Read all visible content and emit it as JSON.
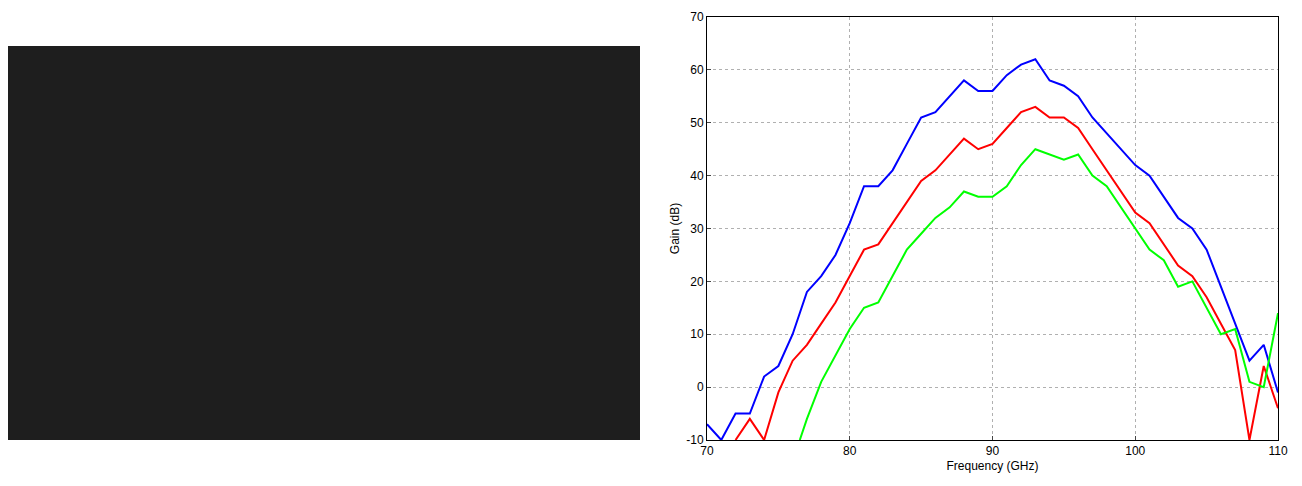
{
  "chart_data": {
    "type": "line",
    "x_label": "Frequency (GHz)",
    "y_label": "Gain (dB)",
    "xlim": [
      70,
      110
    ],
    "xticks": [
      70,
      80,
      90,
      100,
      110
    ],
    "ylim": [
      -10,
      70
    ],
    "yticks": [
      -10,
      0,
      10,
      20,
      30,
      40,
      50,
      60,
      70
    ],
    "grid": true,
    "series": [
      {
        "color": "#0000ff",
        "x": [
          70,
          71,
          72,
          73,
          74,
          75,
          76,
          77,
          78,
          79,
          80,
          81,
          82,
          83,
          84,
          85,
          86,
          87,
          88,
          89,
          90,
          91,
          92,
          93,
          94,
          95,
          96,
          97,
          98,
          99,
          100,
          101,
          102,
          103,
          104,
          105,
          106,
          107,
          108,
          109,
          110
        ],
        "values": [
          -7,
          -10,
          -5,
          -5,
          2,
          4,
          10,
          18,
          21,
          25,
          31,
          38,
          38,
          41,
          46,
          51,
          52,
          55,
          58,
          56,
          56,
          59,
          61,
          62,
          58,
          57,
          55,
          51,
          48,
          45,
          42,
          40,
          36,
          32,
          30,
          26,
          19,
          12,
          5,
          8,
          -1
        ]
      },
      {
        "color": "#ff0000",
        "x": [
          72,
          73,
          74,
          75,
          76,
          77,
          78,
          79,
          80,
          81,
          82,
          83,
          84,
          85,
          86,
          87,
          88,
          89,
          90,
          91,
          92,
          93,
          94,
          95,
          96,
          97,
          98,
          99,
          100,
          101,
          102,
          103,
          104,
          105,
          106,
          107,
          108,
          109,
          110
        ],
        "values": [
          -10,
          -6,
          -10,
          -1,
          5,
          8,
          12,
          16,
          21,
          26,
          27,
          31,
          35,
          39,
          41,
          44,
          47,
          45,
          46,
          49,
          52,
          53,
          51,
          51,
          49,
          45,
          41,
          37,
          33,
          31,
          27,
          23,
          21,
          17,
          12,
          7,
          -10,
          4,
          -4
        ]
      },
      {
        "color": "#00ff00",
        "x": [
          76.5,
          77,
          78,
          79,
          80,
          81,
          82,
          83,
          84,
          85,
          86,
          87,
          88,
          89,
          90,
          91,
          92,
          93,
          94,
          95,
          96,
          97,
          98,
          99,
          100,
          101,
          102,
          103,
          104,
          105,
          106,
          107,
          108,
          109,
          110
        ],
        "values": [
          -10,
          -6,
          1,
          6,
          11,
          15,
          16,
          21,
          26,
          29,
          32,
          34,
          37,
          36,
          36,
          38,
          42,
          45,
          44,
          43,
          44,
          40,
          38,
          34,
          30,
          26,
          24,
          19,
          20,
          15,
          10,
          11,
          1,
          0,
          14
        ]
      }
    ]
  }
}
